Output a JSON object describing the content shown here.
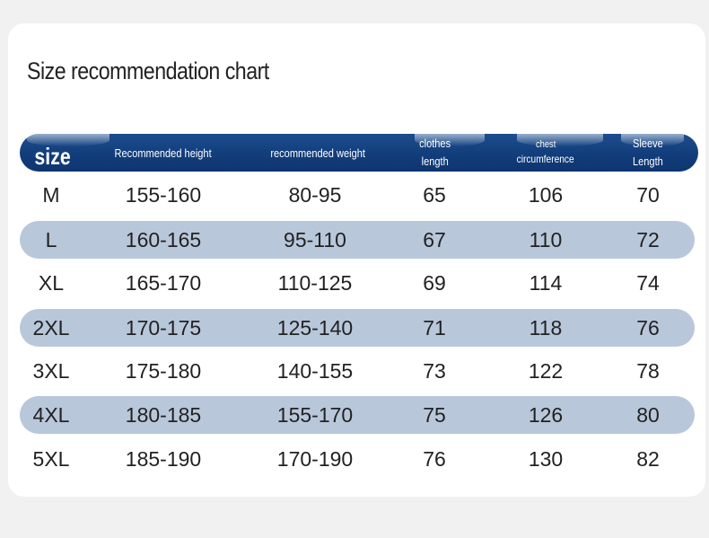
{
  "title": "Size recommendation chart",
  "header": {
    "size": "size",
    "height": "Recommended height",
    "weight": "recommended weight",
    "length_l1": "clothes",
    "length_l2": "length",
    "chest_l1": "chest",
    "chest_l2": "circumference",
    "sleeve_l1": "Sleeve",
    "sleeve_l2": "Length"
  },
  "colors": {
    "header_background": "#123d7b",
    "shaded_row": "#b9c7db",
    "card_background": "#ffffff",
    "page_background": "#f1f1f1"
  },
  "rows": [
    {
      "size": "M",
      "height": "155-160",
      "weight": "80-95",
      "length": "65",
      "chest": "106",
      "sleeve": "70"
    },
    {
      "size": "L",
      "height": "160-165",
      "weight": "95-110",
      "length": "67",
      "chest": "110",
      "sleeve": "72"
    },
    {
      "size": "XL",
      "height": "165-170",
      "weight": "110-125",
      "length": "69",
      "chest": "114",
      "sleeve": "74"
    },
    {
      "size": "2XL",
      "height": "170-175",
      "weight": "125-140",
      "length": "71",
      "chest": "118",
      "sleeve": "76"
    },
    {
      "size": "3XL",
      "height": "175-180",
      "weight": "140-155",
      "length": "73",
      "chest": "122",
      "sleeve": "78"
    },
    {
      "size": "4XL",
      "height": "180-185",
      "weight": "155-170",
      "length": "75",
      "chest": "126",
      "sleeve": "80"
    },
    {
      "size": "5XL",
      "height": "185-190",
      "weight": "170-190",
      "length": "76",
      "chest": "130",
      "sleeve": "82"
    }
  ]
}
